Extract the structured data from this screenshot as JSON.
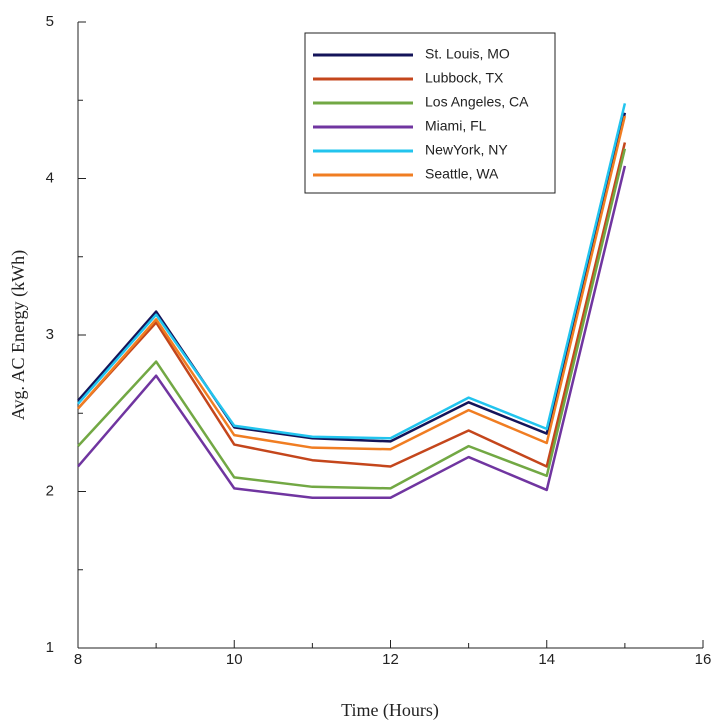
{
  "chart_data": {
    "type": "line",
    "xlabel": "Time (Hours)",
    "ylabel": "Avg. AC Energy (kWh)",
    "x": [
      8,
      9,
      10,
      11,
      12,
      13,
      14,
      15
    ],
    "xlim": [
      8,
      16
    ],
    "xticks": [
      8,
      10,
      12,
      14,
      16
    ],
    "xminor_ticks": [
      9,
      11,
      13,
      15
    ],
    "ylim": [
      1,
      5
    ],
    "yticks": [
      1,
      2,
      3,
      4,
      5
    ],
    "yminor_ticks": [
      1.5,
      2.5,
      3.5,
      4.5
    ],
    "grid": false,
    "legend_position": "top",
    "series": [
      {
        "name": "St. Louis, MO",
        "color": "#14145a",
        "values": [
          2.58,
          3.15,
          2.41,
          2.34,
          2.32,
          2.57,
          2.37,
          4.42
        ]
      },
      {
        "name": "Lubbock, TX",
        "color": "#c4461c",
        "values": [
          2.53,
          3.08,
          2.3,
          2.2,
          2.16,
          2.39,
          2.16,
          4.23
        ]
      },
      {
        "name": "Los Angeles, CA",
        "color": "#72a844",
        "values": [
          2.29,
          2.83,
          2.09,
          2.03,
          2.02,
          2.29,
          2.1,
          4.19
        ]
      },
      {
        "name": "Miami, FL",
        "color": "#7035a0",
        "values": [
          2.16,
          2.74,
          2.02,
          1.96,
          1.96,
          2.22,
          2.01,
          4.08
        ]
      },
      {
        "name": "NewYork, NY",
        "color": "#22c4ee",
        "values": [
          2.56,
          3.13,
          2.42,
          2.35,
          2.34,
          2.6,
          2.4,
          4.48
        ]
      },
      {
        "name": "Seattle, WA",
        "color": "#f07d22",
        "values": [
          2.53,
          3.1,
          2.36,
          2.28,
          2.27,
          2.52,
          2.31,
          4.4
        ]
      }
    ]
  }
}
